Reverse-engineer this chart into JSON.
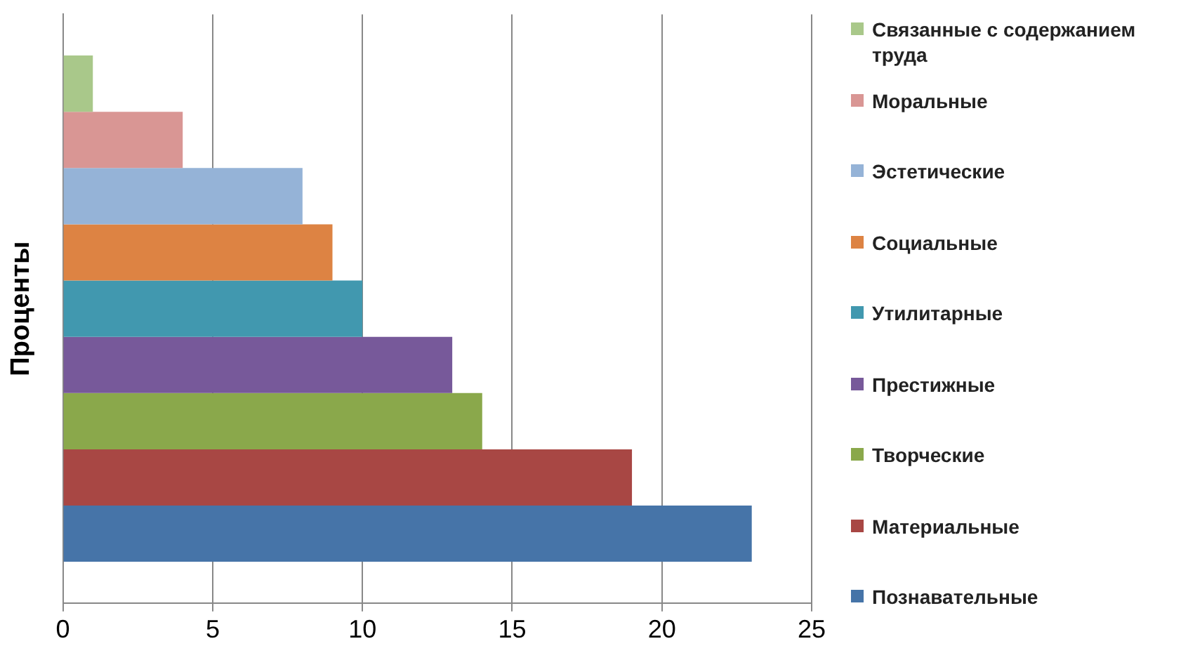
{
  "chart_data": {
    "type": "bar",
    "orientation": "horizontal",
    "ylabel": "Проценты",
    "categories": [
      null
    ],
    "series": [
      {
        "name": "Связанные с содержанием труда",
        "color": "#a9c88a",
        "values": [
          1
        ]
      },
      {
        "name": "Моральные",
        "color": "#d99694",
        "values": [
          4
        ]
      },
      {
        "name": "Эстетические",
        "color": "#95b3d7",
        "values": [
          8
        ]
      },
      {
        "name": "Социальные",
        "color": "#dd8343",
        "values": [
          9
        ]
      },
      {
        "name": "Утилитарные",
        "color": "#4198af",
        "values": [
          10
        ]
      },
      {
        "name": "Престижные",
        "color": "#77599a",
        "values": [
          13
        ]
      },
      {
        "name": "Творческие",
        "color": "#8aa84b",
        "values": [
          14
        ]
      },
      {
        "name": "Материальные",
        "color": "#a84744",
        "values": [
          19
        ]
      },
      {
        "name": "Познавательные",
        "color": "#4674a8",
        "values": [
          23
        ]
      }
    ],
    "xlim": [
      0,
      25
    ],
    "xticks": [
      0,
      5,
      10,
      15,
      20,
      25
    ],
    "grid": "x",
    "legend": "right"
  }
}
